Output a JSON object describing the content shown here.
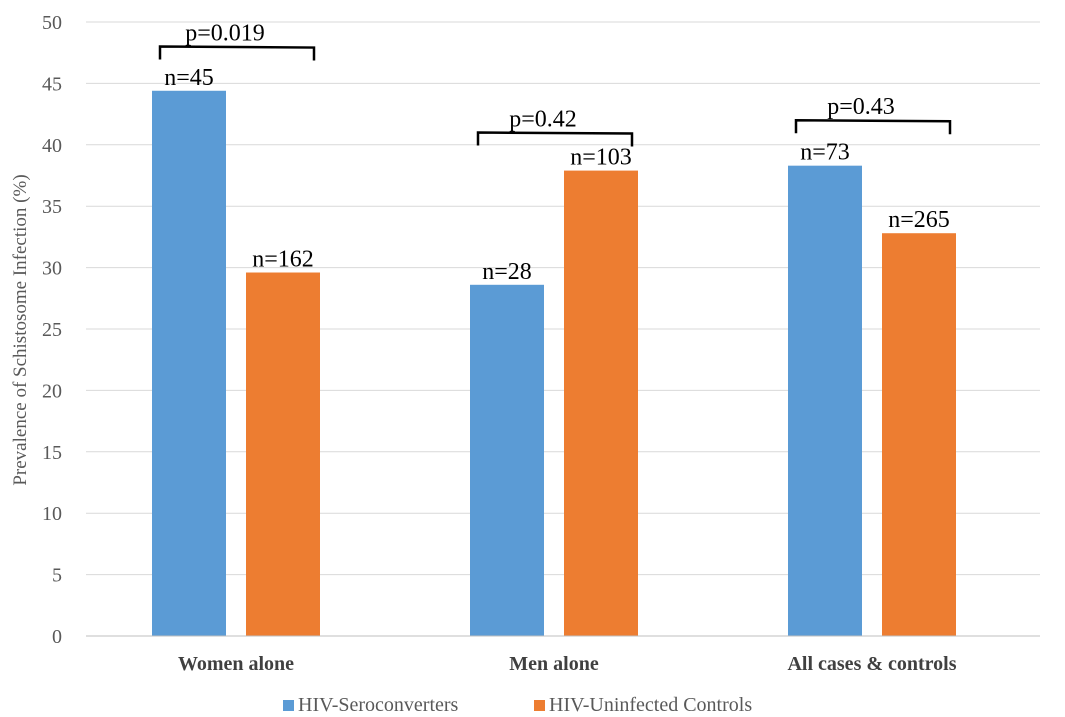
{
  "chart_data": {
    "type": "bar",
    "ylabel": "Prevalence of Schistosome Infection (%)",
    "ylim": [
      0,
      50
    ],
    "yticks": [
      0,
      5,
      10,
      15,
      20,
      25,
      30,
      35,
      40,
      45,
      50
    ],
    "categories": [
      "Women alone",
      "Men alone",
      "All cases & controls"
    ],
    "series": [
      {
        "name": "HIV-Seroconverters",
        "color": "#5b9bd5",
        "values": [
          44.4,
          28.6,
          38.3
        ],
        "labels": [
          "n=45",
          "n=28",
          "n=73"
        ]
      },
      {
        "name": "HIV-Uninfected Controls",
        "color": "#ed7d31",
        "values": [
          29.6,
          37.9,
          32.8
        ],
        "labels": [
          "n=162",
          "n=103",
          "n=265"
        ]
      }
    ],
    "comparisons": [
      {
        "category": "Women alone",
        "label": "p=0.019",
        "level": 48.0
      },
      {
        "category": "Men alone",
        "label": "p=0.42",
        "level": 41.0
      },
      {
        "category": "All cases & controls",
        "label": "p=0.43",
        "level": 42.0
      }
    ],
    "grid": true,
    "legend": "bottom-center"
  }
}
